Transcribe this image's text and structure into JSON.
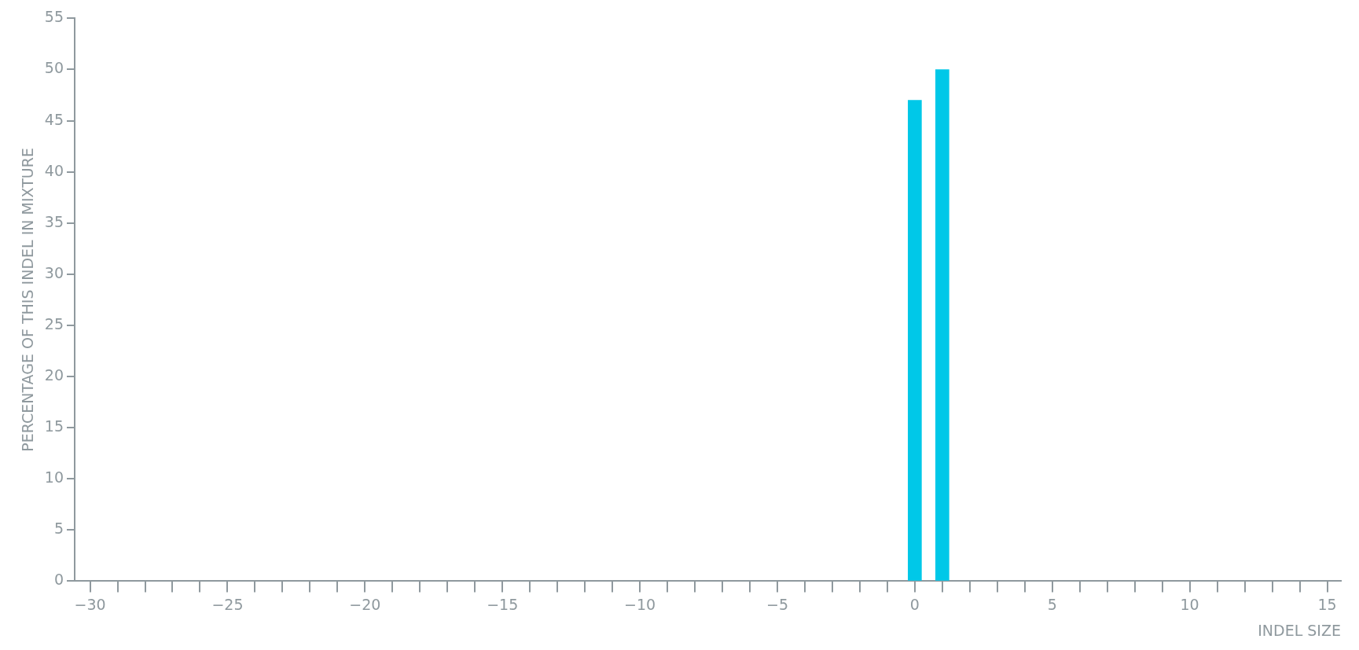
{
  "chart_data": {
    "type": "bar",
    "xlabel": "INDEL SIZE",
    "ylabel": "PERCENTAGE OF THIS INDEL IN MIXTURE",
    "x": [
      0,
      1
    ],
    "values": [
      47,
      50
    ],
    "color": "#00c8e8",
    "xlim": [
      -30.56,
      15.5
    ],
    "ylim": [
      0,
      55
    ],
    "xticks": [
      -30,
      {
        "value": -29,
        "label": null
      },
      {
        "value": -28,
        "label": null
      },
      {
        "value": -27,
        "label": null
      },
      {
        "value": -26,
        "label": null
      },
      -25,
      {
        "value": -24,
        "label": null
      },
      {
        "value": -23,
        "label": null
      },
      {
        "value": -22,
        "label": null
      },
      {
        "value": -21,
        "label": null
      },
      -20,
      {
        "value": -19,
        "label": null
      },
      {
        "value": -18,
        "label": null
      },
      {
        "value": -17,
        "label": null
      },
      {
        "value": -16,
        "label": null
      },
      -15,
      {
        "value": -14,
        "label": null
      },
      {
        "value": -13,
        "label": null
      },
      {
        "value": -12,
        "label": null
      },
      {
        "value": -11,
        "label": null
      },
      -10,
      {
        "value": -9,
        "label": null
      },
      {
        "value": -8,
        "label": null
      },
      {
        "value": -7,
        "label": null
      },
      {
        "value": -6,
        "label": null
      },
      -5,
      {
        "value": -4,
        "label": null
      },
      {
        "value": -3,
        "label": null
      },
      {
        "value": -2,
        "label": null
      },
      {
        "value": -1,
        "label": null
      },
      0,
      {
        "value": 1,
        "label": null
      },
      {
        "value": 2,
        "label": null
      },
      {
        "value": 3,
        "label": null
      },
      {
        "value": 4,
        "label": null
      },
      5,
      {
        "value": 6,
        "label": null
      },
      {
        "value": 7,
        "label": null
      },
      {
        "value": 8,
        "label": null
      },
      {
        "value": 9,
        "label": null
      },
      10,
      {
        "value": 11,
        "label": null
      },
      {
        "value": 12,
        "label": null
      },
      {
        "value": 13,
        "label": null
      },
      {
        "value": 14,
        "label": null
      },
      15
    ],
    "yticks": [
      0,
      5,
      10,
      15,
      20,
      25,
      30,
      35,
      40,
      45,
      50,
      55
    ],
    "grid": false,
    "legend": false
  }
}
